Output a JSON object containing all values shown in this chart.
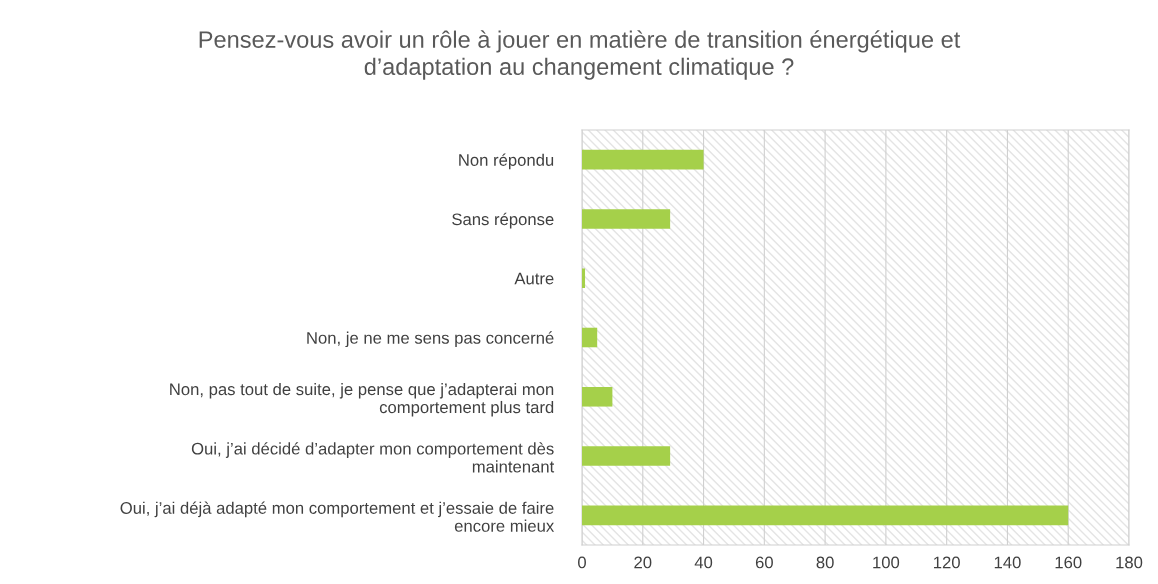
{
  "chart_data": {
    "type": "bar",
    "orientation": "horizontal",
    "title": "Pensez-vous avoir un rôle à jouer en matière de transition énergétique et\nd’adaptation au changement climatique ?",
    "categories": [
      "Non répondu",
      "Sans réponse",
      "Autre",
      "Non, je ne me sens pas concerné",
      "Non, pas tout de suite, je pense que j’adapterai mon\ncomportement plus tard",
      "Oui, j’ai décidé d’adapter mon comportement dès\nmaintenant",
      "Oui, j’ai déjà adapté mon comportement et j’essaie de faire\nencore mieux"
    ],
    "values": [
      40,
      29,
      1,
      5,
      10,
      29,
      160
    ],
    "color": "#a5d04a",
    "xlim": [
      0,
      180
    ],
    "xticks": [
      0,
      20,
      40,
      60,
      80,
      100,
      120,
      140,
      160,
      180
    ],
    "grid": "x"
  }
}
